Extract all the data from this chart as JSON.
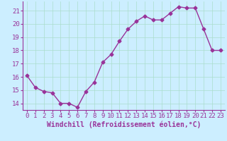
{
  "x": [
    0,
    1,
    2,
    3,
    4,
    5,
    6,
    7,
    8,
    9,
    10,
    11,
    12,
    13,
    14,
    15,
    16,
    17,
    18,
    19,
    20,
    21,
    22,
    23
  ],
  "y": [
    16.1,
    15.2,
    14.9,
    14.8,
    14.0,
    14.0,
    13.7,
    14.9,
    15.6,
    17.1,
    17.7,
    18.7,
    19.6,
    20.2,
    20.6,
    20.3,
    20.3,
    20.8,
    21.3,
    21.2,
    21.2,
    19.6,
    18.0,
    18.0
  ],
  "line_color": "#993399",
  "marker": "D",
  "marker_size": 2.5,
  "bg_color": "#cceeff",
  "grid_color": "#aaddcc",
  "xlabel": "Windchill (Refroidissement éolien,°C)",
  "ylabel": "",
  "ylim": [
    13.5,
    21.7
  ],
  "yticks": [
    14,
    15,
    16,
    17,
    18,
    19,
    20,
    21
  ],
  "xticks": [
    0,
    1,
    2,
    3,
    4,
    5,
    6,
    7,
    8,
    9,
    10,
    11,
    12,
    13,
    14,
    15,
    16,
    17,
    18,
    19,
    20,
    21,
    22,
    23
  ],
  "xlabel_fontsize": 7,
  "tick_fontsize": 6.5,
  "line_width": 1.0
}
